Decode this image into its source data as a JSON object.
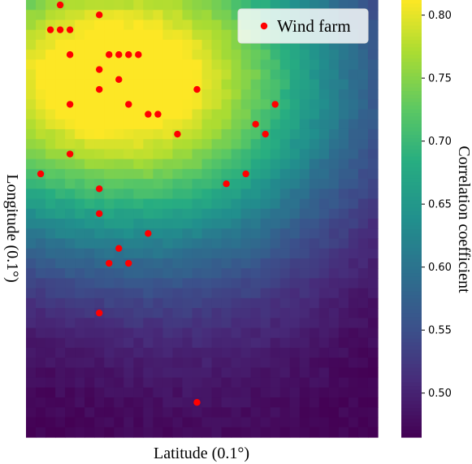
{
  "chart_data": {
    "type": "heatmap",
    "xlabel": "Latitude (0.1°)",
    "ylabel": "Longitude (0.1°)",
    "colorbar": {
      "label": "Correlation coefficient",
      "range": [
        0.465,
        0.812
      ],
      "ticks": [
        "0.50",
        "0.55",
        "0.60",
        "0.65",
        "0.70",
        "0.75",
        "0.80"
      ],
      "tick_values": [
        0.5,
        0.55,
        0.6,
        0.65,
        0.7,
        0.75,
        0.8
      ]
    },
    "colormap": "viridis",
    "grid": {
      "cols": 36,
      "rows": 44
    },
    "field": {
      "peak": [
        0.2,
        0.82,
        0.82
      ],
      "base": 0.46,
      "spread": [
        0.75,
        0.42,
        0.9
      ],
      "secondary": [
        0.55,
        0.82,
        0.05,
        0.42,
        0.7
      ]
    },
    "legend": {
      "label": "Wind farm",
      "color": "#ff0000",
      "position": "upper-right"
    },
    "series": [
      {
        "name": "Wind farm",
        "type": "scatter",
        "color": "#ff0000",
        "x": [
          3.5,
          7.5,
          2.5,
          3.5,
          4.5,
          4.5,
          8.5,
          10.5,
          9.5,
          11.5,
          7.5,
          9.5,
          7.5,
          17.5,
          4.5,
          10.5,
          25.5,
          12.5,
          13.5,
          23.5,
          15.5,
          24.5,
          4.5,
          1.5,
          22.5,
          20.5,
          7.5,
          7.5,
          12.5,
          9.5,
          8.5,
          10.5,
          7.5,
          17.5
        ],
        "y": [
          0.5,
          1.5,
          3.0,
          3.0,
          3.0,
          5.5,
          5.5,
          5.5,
          5.5,
          5.5,
          7.0,
          8.0,
          9.0,
          9.0,
          10.5,
          10.5,
          10.5,
          11.5,
          11.5,
          12.5,
          13.5,
          13.5,
          15.5,
          17.5,
          17.5,
          18.5,
          19.0,
          21.5,
          23.5,
          25.0,
          26.5,
          26.5,
          31.5,
          40.5
        ]
      }
    ]
  }
}
